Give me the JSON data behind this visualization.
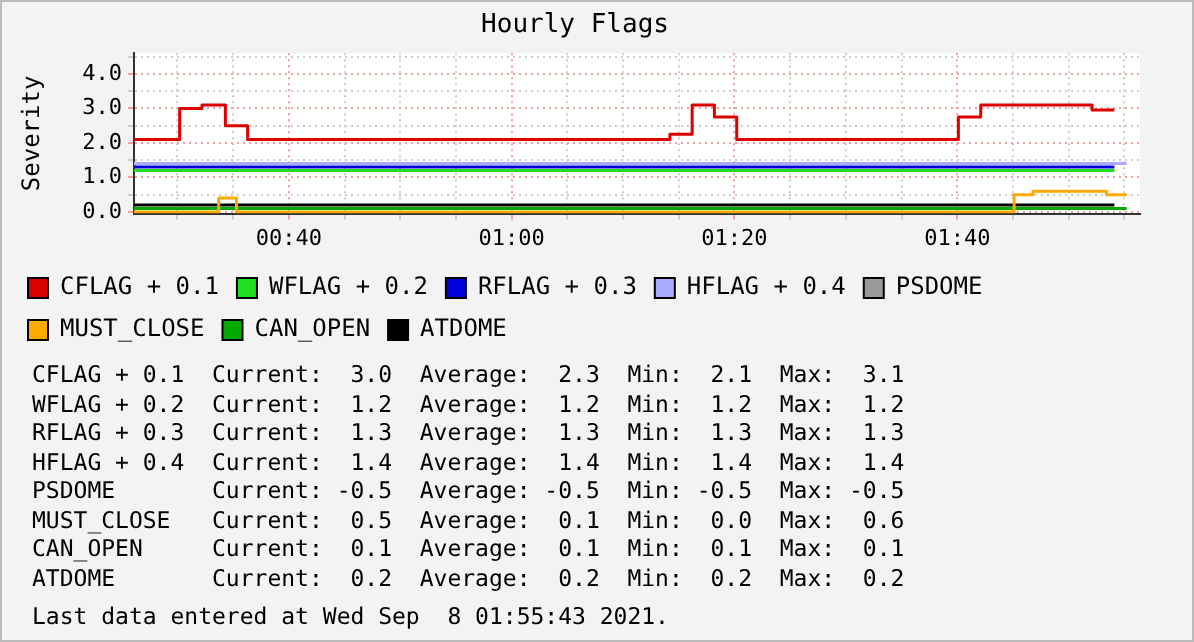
{
  "chart_data": {
    "type": "step",
    "title": "Hourly Flags",
    "ylabel": "Severity",
    "xlim": [
      0.435,
      1.94
    ],
    "ylim": [
      -0.05,
      4.6
    ],
    "xticks": [
      {
        "value": 0.5,
        "label": null
      },
      {
        "value": 0.5833,
        "label": null
      },
      {
        "value": 0.6667,
        "label": "00:40"
      },
      {
        "value": 0.75,
        "label": null
      },
      {
        "value": 0.8333,
        "label": null
      },
      {
        "value": 0.9167,
        "label": null
      },
      {
        "value": 1.0,
        "label": "01:00"
      },
      {
        "value": 1.0833,
        "label": null
      },
      {
        "value": 1.1667,
        "label": null
      },
      {
        "value": 1.25,
        "label": null
      },
      {
        "value": 1.3333,
        "label": "01:20"
      },
      {
        "value": 1.4167,
        "label": null
      },
      {
        "value": 1.5,
        "label": null
      },
      {
        "value": 1.5833,
        "label": null
      },
      {
        "value": 1.6667,
        "label": "01:40"
      },
      {
        "value": 1.75,
        "label": null
      },
      {
        "value": 1.8333,
        "label": null
      },
      {
        "value": 1.9167,
        "label": null
      }
    ],
    "yticks": [
      {
        "value": 0,
        "label": "0.0"
      },
      {
        "value": 0.5,
        "label": null
      },
      {
        "value": 1,
        "label": "1.0"
      },
      {
        "value": 1.5,
        "label": null
      },
      {
        "value": 2,
        "label": "2.0"
      },
      {
        "value": 2.5,
        "label": null
      },
      {
        "value": 3,
        "label": "3.0"
      },
      {
        "value": 3.5,
        "label": null
      },
      {
        "value": 4,
        "label": "4.0"
      },
      {
        "value": 4.5,
        "label": null
      }
    ],
    "grid": true,
    "legend": "bottom",
    "series": [
      {
        "name": "CFLAG + 0.1",
        "color": "#dd0000",
        "x": [
          0.435,
          0.5033,
          0.5367,
          0.5717,
          0.605,
          1.2367,
          1.27,
          1.3033,
          1.3367,
          1.6683,
          1.7017,
          1.8683,
          1.9017
        ],
        "values": [
          2.1,
          3.0,
          3.1,
          2.5,
          2.1,
          2.25,
          3.1,
          2.75,
          2.1,
          2.75,
          3.1,
          2.95,
          2.95
        ]
      },
      {
        "name": "WFLAG + 0.2",
        "color": "#22dd22",
        "x": [
          0.435,
          1.9017
        ],
        "values": [
          1.2,
          1.2
        ]
      },
      {
        "name": "RFLAG + 0.3",
        "color": "#0000dd",
        "x": [
          0.435,
          1.9017
        ],
        "values": [
          1.3,
          1.3
        ]
      },
      {
        "name": "HFLAG + 0.4",
        "color": "#aaaaff",
        "x": [
          0.435,
          1.92
        ],
        "values": [
          1.4,
          1.4
        ]
      },
      {
        "name": "PSDOME",
        "color": "#999999"
      },
      {
        "name": "MUST_CLOSE",
        "color": "#ffaa00",
        "x": [
          0.435,
          0.5617,
          0.5883,
          1.7517,
          1.78,
          1.89,
          1.92
        ],
        "values": [
          0.0,
          0.4,
          0.0,
          0.5,
          0.6,
          0.5,
          0.5
        ]
      },
      {
        "name": "CAN_OPEN",
        "color": "#00aa00",
        "x": [
          0.435,
          1.92
        ],
        "values": [
          0.1,
          0.1
        ]
      },
      {
        "name": "ATDOME",
        "color": "#000000",
        "x": [
          0.435,
          1.9017
        ],
        "values": [
          0.2,
          0.2
        ]
      }
    ],
    "annotations": [
      "CFLAG + 0.1  Current:  3.0  Average:  2.3  Min:  2.1  Max:  3.1",
      "WFLAG + 0.2  Current:  1.2  Average:  1.2  Min:  1.2  Max:  1.2",
      "RFLAG + 0.3  Current:  1.3  Average:  1.3  Min:  1.3  Max:  1.3",
      "HFLAG + 0.4  Current:  1.4  Average:  1.4  Min:  1.4  Max:  1.4",
      "PSDOME       Current: -0.5  Average: -0.5  Min: -0.5  Max: -0.5",
      "MUST_CLOSE   Current:  0.5  Average:  0.1  Min:  0.0  Max:  0.6",
      "CAN_OPEN     Current:  0.1  Average:  0.1  Min:  0.1  Max:  0.1",
      "ATDOME       Current:  0.2  Average:  0.2  Min:  0.2  Max:  0.2",
      "Last data entered at Wed Sep  8 01:55:43 2021."
    ]
  }
}
